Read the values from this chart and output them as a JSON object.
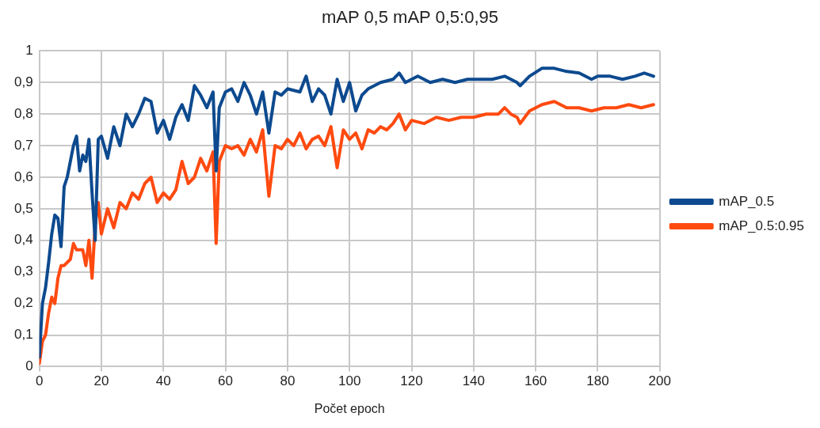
{
  "chart_data": {
    "type": "line",
    "title": "mAP 0,5 mAP 0,5:0,95",
    "xlabel": "Počet epoch",
    "xlim": [
      0,
      200
    ],
    "xticks": [
      0,
      20,
      40,
      60,
      80,
      100,
      120,
      140,
      160,
      180,
      200
    ],
    "ylim": [
      0,
      1
    ],
    "yticks": [
      0,
      {
        "value": 0.1,
        "label": "0,1"
      },
      {
        "value": 0.2,
        "label": "0,2"
      },
      {
        "value": 0.3,
        "label": "0,3"
      },
      {
        "value": 0.4,
        "label": "0,4"
      },
      {
        "value": 0.5,
        "label": "0,5"
      },
      {
        "value": 0.6,
        "label": "0,6"
      },
      {
        "value": 0.7,
        "label": "0,7"
      },
      {
        "value": 0.8,
        "label": "0,8"
      },
      {
        "value": 0.9,
        "label": "0,9"
      },
      1
    ],
    "grid": true,
    "legend": "right",
    "marker": "none",
    "line_style": "solid",
    "series": [
      {
        "name": "mAP_0.5",
        "color": "#0d4a8f",
        "x": [
          0,
          1,
          2,
          3,
          4,
          5,
          6,
          7,
          8,
          9,
          10,
          11,
          12,
          13,
          14,
          15,
          16,
          17,
          18,
          19,
          20,
          22,
          24,
          26,
          28,
          30,
          32,
          34,
          36,
          38,
          40,
          42,
          44,
          46,
          48,
          50,
          52,
          54,
          56,
          57,
          58,
          60,
          62,
          64,
          66,
          68,
          70,
          72,
          74,
          76,
          78,
          80,
          84,
          86,
          88,
          90,
          92,
          94,
          96,
          98,
          100,
          102,
          104,
          106,
          110,
          114,
          116,
          118,
          122,
          126,
          130,
          134,
          138,
          142,
          146,
          150,
          154,
          155,
          158,
          162,
          166,
          170,
          174,
          178,
          180,
          184,
          188,
          192,
          195,
          198
        ],
        "values": [
          0.03,
          0.2,
          0.25,
          0.33,
          0.42,
          0.48,
          0.47,
          0.38,
          0.57,
          0.6,
          0.65,
          0.7,
          0.73,
          0.62,
          0.67,
          0.65,
          0.72,
          0.55,
          0.4,
          0.72,
          0.73,
          0.66,
          0.76,
          0.7,
          0.8,
          0.76,
          0.8,
          0.85,
          0.84,
          0.74,
          0.78,
          0.72,
          0.79,
          0.83,
          0.78,
          0.89,
          0.86,
          0.82,
          0.87,
          0.62,
          0.82,
          0.87,
          0.88,
          0.84,
          0.9,
          0.86,
          0.8,
          0.87,
          0.74,
          0.87,
          0.86,
          0.88,
          0.87,
          0.92,
          0.84,
          0.88,
          0.86,
          0.8,
          0.91,
          0.84,
          0.9,
          0.81,
          0.86,
          0.88,
          0.9,
          0.91,
          0.93,
          0.9,
          0.92,
          0.9,
          0.91,
          0.9,
          0.91,
          0.91,
          0.91,
          0.92,
          0.9,
          0.89,
          0.92,
          0.945,
          0.945,
          0.935,
          0.93,
          0.91,
          0.92,
          0.92,
          0.91,
          0.92,
          0.93,
          0.92
        ]
      },
      {
        "name": "mAP_0.5:0.95",
        "color": "#ff4a10",
        "x": [
          0,
          1,
          2,
          3,
          4,
          5,
          6,
          7,
          8,
          10,
          11,
          12,
          14,
          15,
          16,
          17,
          18,
          19,
          20,
          22,
          24,
          26,
          28,
          30,
          32,
          34,
          36,
          38,
          40,
          42,
          44,
          46,
          48,
          50,
          52,
          54,
          56,
          57,
          58,
          60,
          62,
          64,
          66,
          68,
          70,
          72,
          74,
          76,
          78,
          80,
          82,
          84,
          86,
          88,
          90,
          92,
          94,
          96,
          98,
          100,
          102,
          104,
          106,
          108,
          110,
          112,
          114,
          116,
          118,
          120,
          124,
          128,
          132,
          136,
          140,
          144,
          148,
          150,
          152,
          154,
          155,
          158,
          162,
          166,
          170,
          174,
          178,
          182,
          186,
          190,
          194,
          198
        ],
        "values": [
          0.01,
          0.08,
          0.1,
          0.17,
          0.22,
          0.2,
          0.28,
          0.32,
          0.32,
          0.34,
          0.39,
          0.37,
          0.37,
          0.32,
          0.4,
          0.28,
          0.45,
          0.52,
          0.42,
          0.5,
          0.44,
          0.52,
          0.5,
          0.55,
          0.53,
          0.58,
          0.6,
          0.52,
          0.55,
          0.53,
          0.56,
          0.65,
          0.58,
          0.6,
          0.66,
          0.62,
          0.68,
          0.39,
          0.65,
          0.7,
          0.69,
          0.7,
          0.67,
          0.72,
          0.68,
          0.75,
          0.54,
          0.7,
          0.69,
          0.72,
          0.7,
          0.74,
          0.69,
          0.72,
          0.73,
          0.7,
          0.76,
          0.63,
          0.75,
          0.72,
          0.74,
          0.69,
          0.75,
          0.74,
          0.76,
          0.75,
          0.77,
          0.8,
          0.75,
          0.78,
          0.77,
          0.79,
          0.78,
          0.79,
          0.79,
          0.8,
          0.8,
          0.82,
          0.8,
          0.79,
          0.77,
          0.81,
          0.83,
          0.84,
          0.82,
          0.82,
          0.81,
          0.82,
          0.82,
          0.83,
          0.82,
          0.83
        ]
      }
    ]
  }
}
